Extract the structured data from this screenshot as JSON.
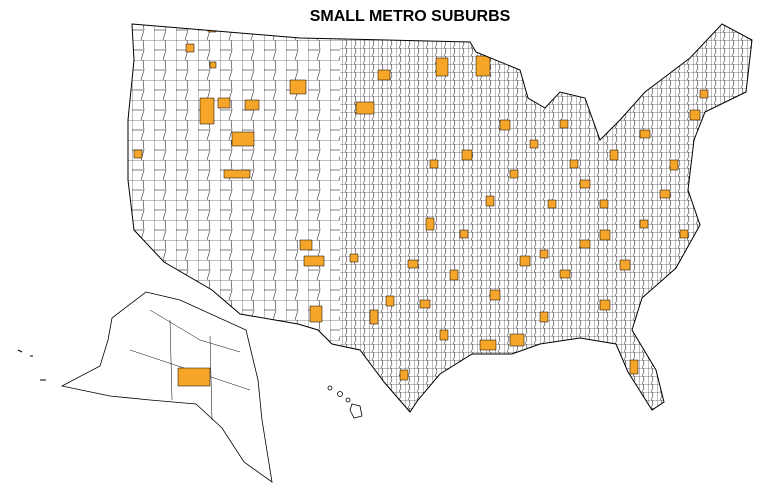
{
  "title": "SMALL METRO SUBURBS"
}
